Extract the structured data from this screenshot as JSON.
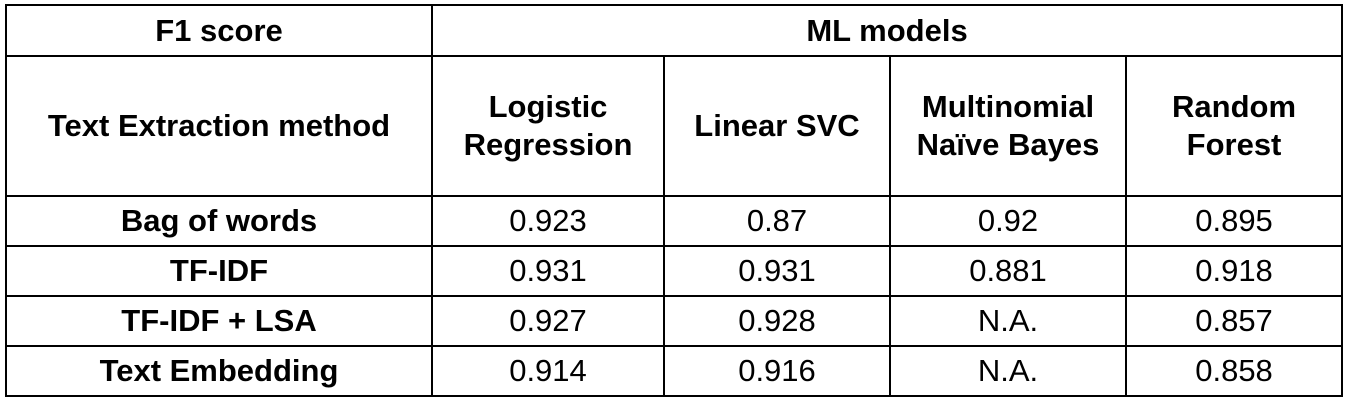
{
  "table": {
    "corner_label": "F1 score",
    "group_label": "ML models",
    "method_header": "Text Extraction method",
    "columns": [
      {
        "line1": "Logistic",
        "line2": "Regression"
      },
      {
        "line1": "Linear SVC",
        "line2": ""
      },
      {
        "line1": "Multinomial",
        "line2": "Naïve Bayes"
      },
      {
        "line1": "Random",
        "line2": "Forest"
      }
    ],
    "rows": [
      {
        "method": "Bag of words",
        "values": [
          "0.923",
          "0.87",
          "0.92",
          "0.895"
        ]
      },
      {
        "method": "TF-IDF",
        "values": [
          "0.931",
          "0.931",
          "0.881",
          "0.918"
        ]
      },
      {
        "method": "TF-IDF + LSA",
        "values": [
          "0.927",
          "0.928",
          "N.A.",
          "0.857"
        ]
      },
      {
        "method": "Text Embedding",
        "values": [
          "0.914",
          "0.916",
          "N.A.",
          "0.858"
        ]
      }
    ]
  }
}
